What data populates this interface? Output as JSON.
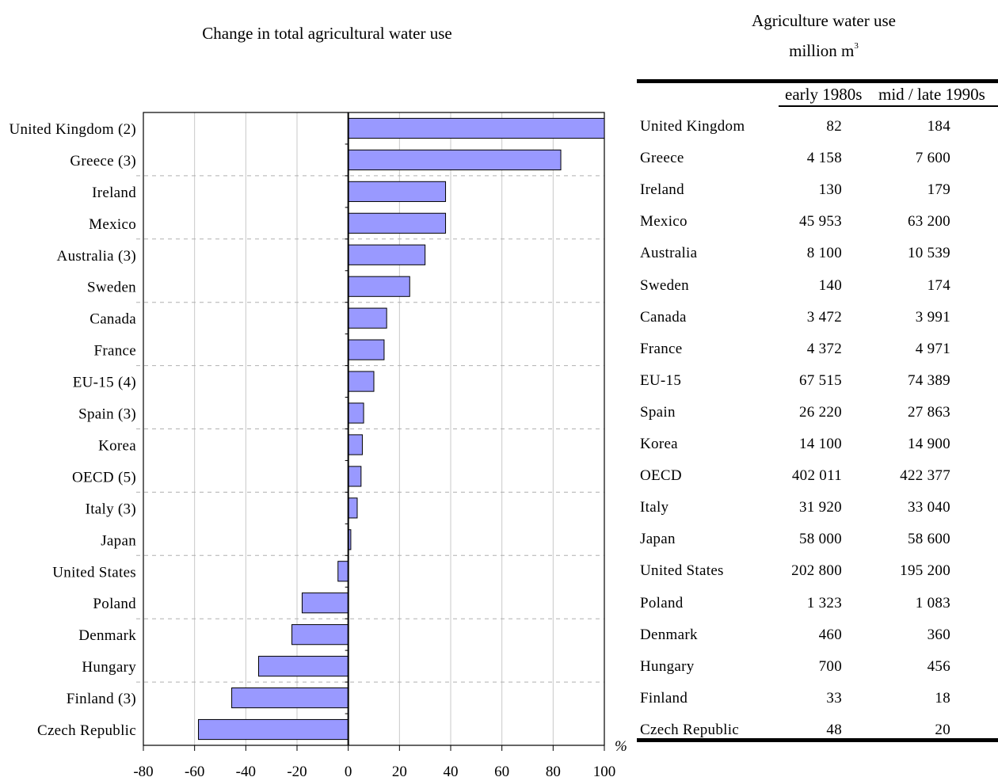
{
  "chart_data": {
    "type": "bar",
    "orientation": "horizontal",
    "title": "Change in total agricultural water use",
    "unit_label": "%",
    "xlim": [
      -80,
      100
    ],
    "x_ticks": [
      "-80",
      "-60",
      "-40",
      "-20",
      "0",
      "20",
      "40",
      "60",
      "80",
      "100"
    ],
    "grid": true,
    "categories": [
      "United Kingdom (2)",
      "Greece (3)",
      "Ireland",
      "Mexico",
      "Australia (3)",
      "Sweden",
      "Canada",
      "France",
      "EU-15 (4)",
      "Spain (3)",
      "Korea",
      "OECD (5)",
      "Italy (3)",
      "Japan",
      "United States",
      "Poland",
      "Denmark",
      "Hungary",
      "Finland (3)",
      "Czech Republic"
    ],
    "values": [
      100,
      83,
      38,
      38,
      30,
      24,
      15,
      14,
      10,
      6,
      5.5,
      5,
      3.5,
      1,
      -4,
      -18,
      -22,
      -35,
      -45.5,
      -58.5
    ],
    "bar_color": "#9999ff"
  },
  "table": {
    "title_line1": "Agriculture water use",
    "title_line2": "million m",
    "title_sup": "3",
    "col1": "early 1980s",
    "col2": "mid / late 1990s",
    "rows": [
      {
        "name": "United Kingdom",
        "v1": "82",
        "v2": "184"
      },
      {
        "name": "Greece",
        "v1": "4 158",
        "v2": "7 600"
      },
      {
        "name": "Ireland",
        "v1": "130",
        "v2": "179"
      },
      {
        "name": "Mexico",
        "v1": "45 953",
        "v2": "63 200"
      },
      {
        "name": "Australia",
        "v1": "8 100",
        "v2": "10 539"
      },
      {
        "name": "Sweden",
        "v1": "140",
        "v2": "174"
      },
      {
        "name": "Canada",
        "v1": "3 472",
        "v2": "3 991"
      },
      {
        "name": "France",
        "v1": "4 372",
        "v2": "4 971"
      },
      {
        "name": "EU-15",
        "v1": "67 515",
        "v2": "74 389"
      },
      {
        "name": "Spain",
        "v1": "26 220",
        "v2": "27 863"
      },
      {
        "name": "Korea",
        "v1": "14 100",
        "v2": "14 900"
      },
      {
        "name": "OECD",
        "v1": "402 011",
        "v2": "422 377"
      },
      {
        "name": "Italy",
        "v1": "31 920",
        "v2": "33 040"
      },
      {
        "name": "Japan",
        "v1": "58 000",
        "v2": "58 600"
      },
      {
        "name": "United States",
        "v1": "202 800",
        "v2": "195 200"
      },
      {
        "name": "Poland",
        "v1": "1 323",
        "v2": "1 083"
      },
      {
        "name": "Denmark",
        "v1": "460",
        "v2": "360"
      },
      {
        "name": "Hungary",
        "v1": "700",
        "v2": "456"
      },
      {
        "name": "Finland",
        "v1": "33",
        "v2": "18"
      },
      {
        "name": "Czech Republic",
        "v1": "48",
        "v2": "20"
      }
    ]
  }
}
